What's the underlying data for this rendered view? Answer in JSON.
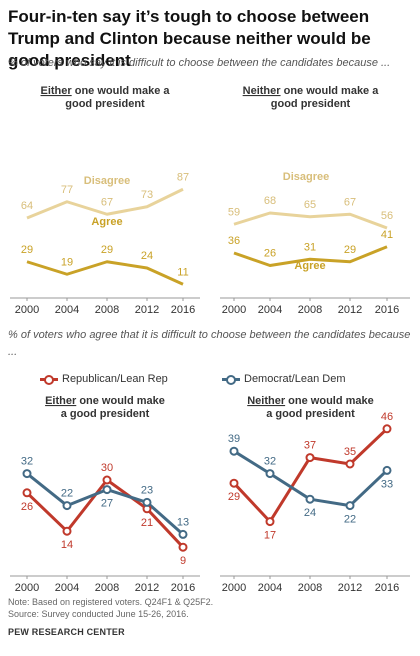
{
  "title": "Four-in-ten say it’s tough to choose between Trump and Clinton because neither would be good president",
  "subtitle": "% of voters who say it is difficult to choose between the candidates because ...",
  "subtitle2": "% of voters who agree that it is difficult to choose between the candidates because ...",
  "note": "Note: Based on registered voters. Q24F1 & Q25F2.",
  "source": "Source: Survey conducted June 15-26, 2016.",
  "brand": "PEW RESEARCH CENTER",
  "colors": {
    "disagree": "#E8D39B",
    "agree": "#C9A227",
    "republican": "#C0392B",
    "democrat": "#436A85"
  },
  "legend": {
    "republican": "Republican/Lean Rep",
    "democrat": "Democrat/Lean Dem"
  },
  "chart_data": [
    {
      "type": "line",
      "title_bold": "Either",
      "title_rest_line1": " one would make a",
      "title_line2": "good president",
      "x": [
        "2000",
        "2004",
        "2008",
        "2012",
        "2016"
      ],
      "ylim": [
        0,
        100
      ],
      "series": [
        {
          "name": "Disagree",
          "values": [
            64,
            77,
            67,
            73,
            87
          ]
        },
        {
          "name": "Agree",
          "values": [
            29,
            19,
            29,
            24,
            11
          ]
        }
      ]
    },
    {
      "type": "line",
      "title_bold": "Neither",
      "title_rest_line1": " one would make a",
      "title_line2": "good president",
      "x": [
        "2000",
        "2004",
        "2008",
        "2012",
        "2016"
      ],
      "ylim": [
        0,
        100
      ],
      "series": [
        {
          "name": "Disagree",
          "values": [
            59,
            68,
            65,
            67,
            56
          ]
        },
        {
          "name": "Agree",
          "values": [
            36,
            26,
            31,
            29,
            41
          ]
        }
      ]
    },
    {
      "type": "line",
      "title_bold": "Either",
      "title_rest_line1": " one would make",
      "title_line2": "a good president",
      "x": [
        "2000",
        "2004",
        "2008",
        "2012",
        "2016"
      ],
      "ylim": [
        0,
        50
      ],
      "series": [
        {
          "name": "Republican/Lean Rep",
          "values": [
            26,
            14,
            30,
            21,
            9
          ]
        },
        {
          "name": "Democrat/Lean Dem",
          "values": [
            32,
            22,
            27,
            23,
            13
          ]
        }
      ]
    },
    {
      "type": "line",
      "title_bold": "Neither",
      "title_rest_line1": " one would make",
      "title_line2": "a good president",
      "x": [
        "2000",
        "2004",
        "2008",
        "2012",
        "2016"
      ],
      "ylim": [
        0,
        50
      ],
      "series": [
        {
          "name": "Republican/Lean Rep",
          "values": [
            29,
            17,
            37,
            35,
            46
          ]
        },
        {
          "name": "Democrat/Lean Dem",
          "values": [
            39,
            32,
            24,
            22,
            33
          ]
        }
      ]
    }
  ]
}
